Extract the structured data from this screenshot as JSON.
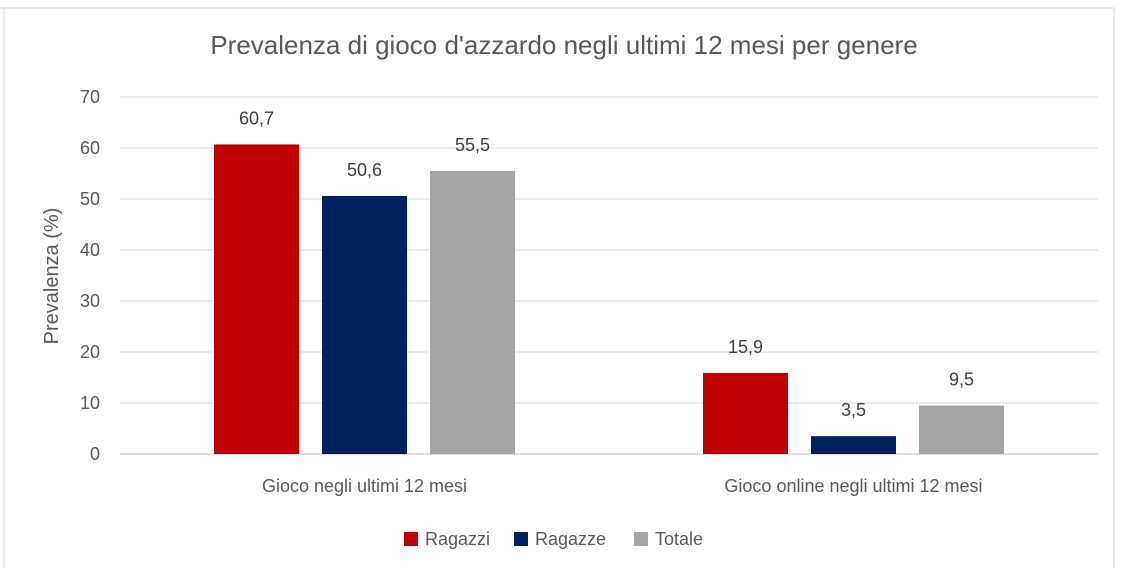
{
  "chart_data": {
    "type": "bar",
    "title": "Prevalenza di gioco d'azzardo negli ultimi 12 mesi per genere",
    "xlabel": "",
    "ylabel": "Prevalenza (%)",
    "ylim": [
      0,
      70
    ],
    "yticks": [
      0,
      10,
      20,
      30,
      40,
      50,
      60,
      70
    ],
    "grid": true,
    "legend_position": "bottom",
    "categories": [
      "Gioco negli ultimi 12 mesi",
      "Gioco online negli ultimi 12 mesi"
    ],
    "series": [
      {
        "name": "Ragazzi",
        "color": "#C00000",
        "values": [
          60.7,
          15.9
        ],
        "labels": [
          "60,7",
          "15,9"
        ]
      },
      {
        "name": "Ragazze",
        "color": "#002060",
        "values": [
          50.6,
          3.5
        ],
        "labels": [
          "50,6",
          "3,5"
        ]
      },
      {
        "name": "Totale",
        "color": "#A5A5A5",
        "values": [
          55.5,
          9.5
        ],
        "labels": [
          "55,5",
          "9,5"
        ]
      }
    ]
  }
}
